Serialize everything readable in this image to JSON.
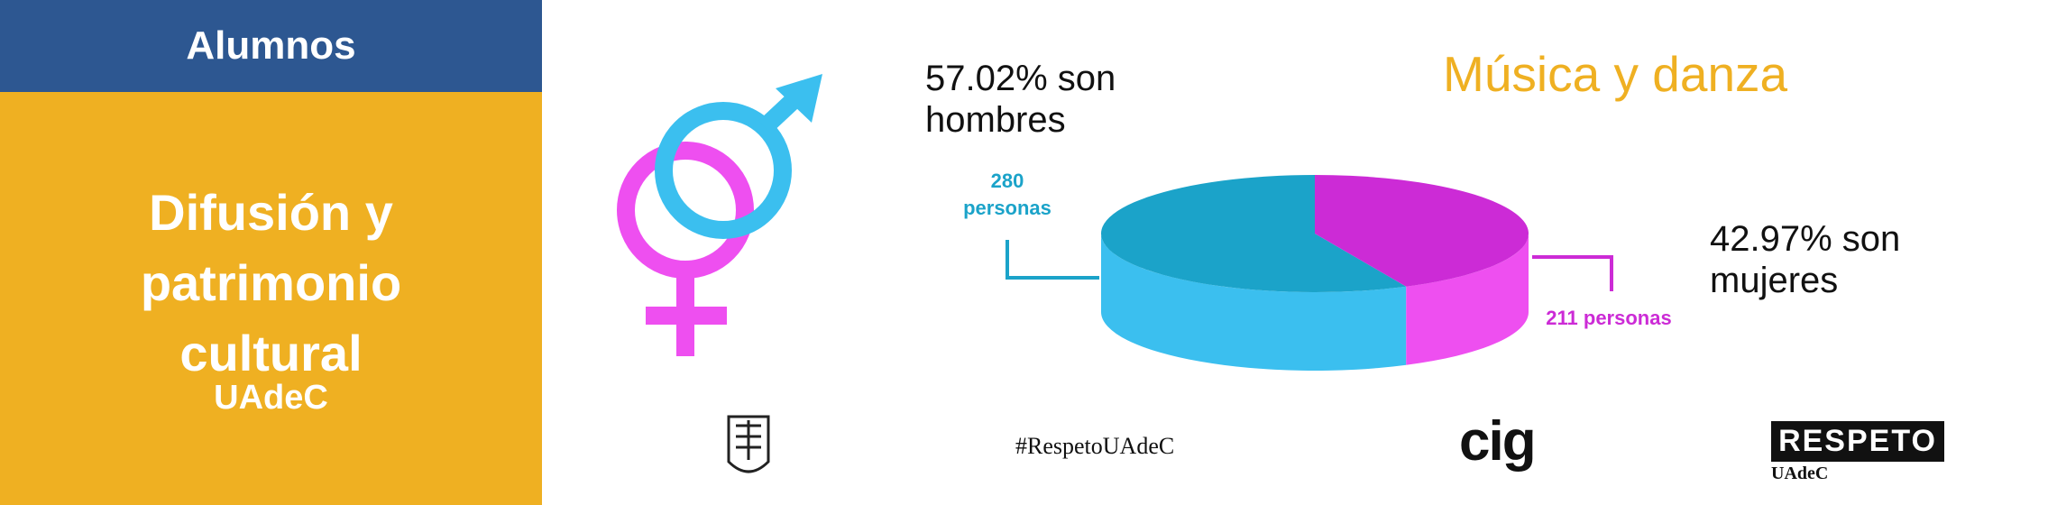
{
  "sidebar": {
    "header": "Alumnos",
    "title": "Difusión y patrimonio cultural",
    "subtitle": "UAdeC"
  },
  "chart_data": {
    "type": "pie",
    "title": "Música y danza",
    "values": [
      57.02,
      42.97
    ],
    "value_labels": [
      "57.02% son hombres",
      "42.97% son mujeres"
    ],
    "count_labels": [
      "280 personas",
      "211 personas"
    ],
    "colors": [
      "#1ba3c9",
      "#cc2bd6"
    ],
    "side_colors": [
      "#3bbfef",
      "#ee4ff0"
    ]
  },
  "footer": {
    "hashtag": "#RespetoUAdeC",
    "cig": "cig",
    "respeto": "RESPETO",
    "respeto_sub": "UAdeC"
  }
}
